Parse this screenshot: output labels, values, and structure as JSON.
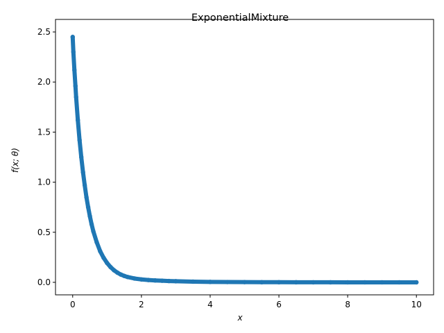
{
  "chart_data": {
    "type": "scatter",
    "title": "ExponentialMixture",
    "xlabel": "x",
    "ylabel": "f(x; θ)",
    "xlim": [
      -0.5,
      10.5
    ],
    "ylim": [
      -0.125,
      2.625
    ],
    "xticks": [
      0,
      2,
      4,
      6,
      8,
      10
    ],
    "yticks": [
      0.0,
      0.5,
      1.0,
      1.5,
      2.0,
      2.5
    ],
    "ytick_labels": [
      "0.0",
      "0.5",
      "1.0",
      "1.5",
      "2.0",
      "2.5"
    ],
    "grid": false,
    "legend": "none",
    "series_color": "#1f77b4",
    "series": [
      {
        "x": [
          0,
          0.02,
          0.05,
          0.08,
          0.1,
          0.15,
          0.2,
          0.25,
          0.3,
          0.35,
          0.4,
          0.45,
          0.5,
          0.55,
          0.6,
          0.7,
          0.8,
          0.9,
          1.0,
          1.1,
          1.2,
          1.3,
          1.4,
          1.5,
          1.6,
          1.8,
          2.0,
          2.2,
          2.4,
          2.6,
          2.8,
          3.0,
          3.5,
          4.0,
          4.5,
          5.0,
          5.5,
          6.0,
          6.5,
          7.0,
          7.5,
          8.0,
          8.5,
          9.0,
          9.5,
          10.0
        ],
        "y": [
          2.45,
          2.3,
          2.12,
          1.96,
          1.85,
          1.62,
          1.42,
          1.25,
          1.1,
          0.97,
          0.85,
          0.75,
          0.66,
          0.58,
          0.51,
          0.4,
          0.31,
          0.245,
          0.193,
          0.153,
          0.121,
          0.097,
          0.078,
          0.064,
          0.053,
          0.038,
          0.029,
          0.023,
          0.019,
          0.016,
          0.013,
          0.011,
          0.007,
          0.004,
          0.003,
          0.002,
          0.001,
          0.001,
          0.0005,
          0.0003,
          0.0002,
          0.0001,
          0.0001,
          0.0,
          0.0,
          0.0
        ]
      }
    ]
  }
}
